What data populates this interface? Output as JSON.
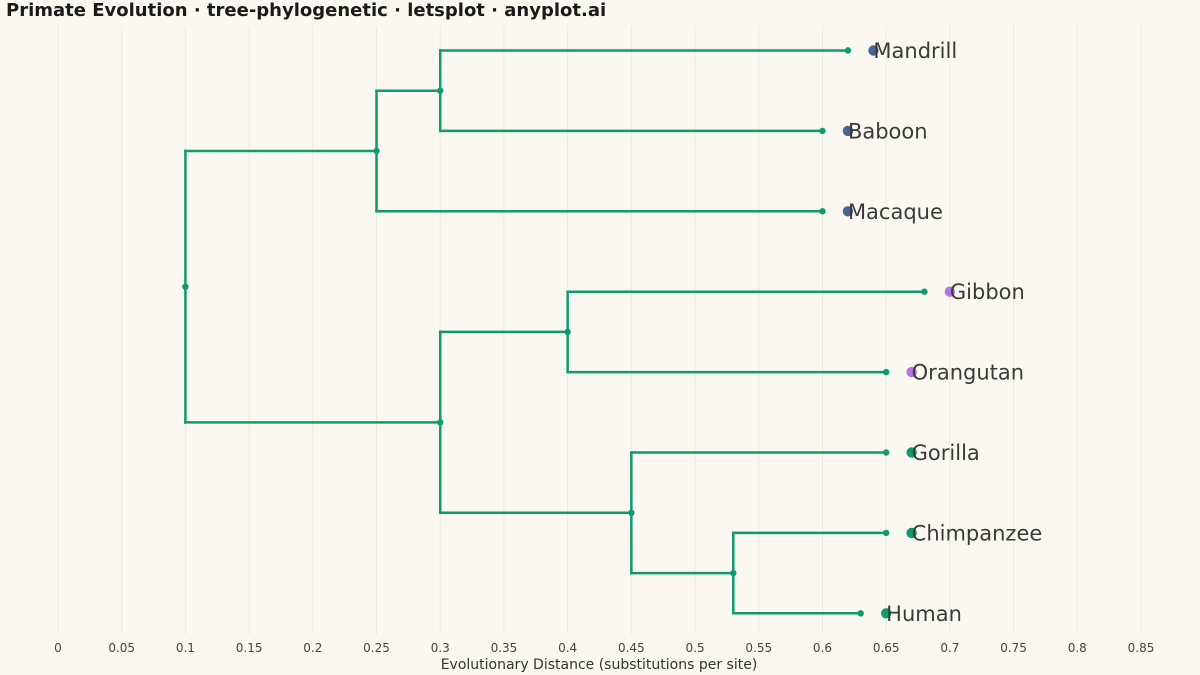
{
  "title": "Primate Evolution · tree-phylogenetic · letsplot · anyplot.ai",
  "chart_data": {
    "type": "tree-phylogenetic",
    "title": "Primate Evolution · tree-phylogenetic · letsplot · anyplot.ai",
    "xlabel": "Evolutionary Distance (substitutions per site)",
    "ylabel": "",
    "xlim": [
      0,
      0.85
    ],
    "x_ticks": [
      "0",
      "0.05",
      "0.1",
      "0.15",
      "0.2",
      "0.25",
      "0.3",
      "0.35",
      "0.4",
      "0.45",
      "0.5",
      "0.55",
      "0.6",
      "0.65",
      "0.7",
      "0.75",
      "0.8",
      "0.85"
    ],
    "grid": "vertical",
    "colors": {
      "branch": "#0E9A6E",
      "old_world_monkeys": "#4A6296",
      "lesser_great_apes": "#B275E8",
      "african_apes": "#0E9A6E"
    },
    "leaves": [
      {
        "name": "Mandrill",
        "x": 0.62,
        "order": 0,
        "color": "#4A6296"
      },
      {
        "name": "Baboon",
        "x": 0.6,
        "order": 1,
        "color": "#4A6296"
      },
      {
        "name": "Macaque",
        "x": 0.6,
        "order": 2,
        "color": "#4A6296"
      },
      {
        "name": "Gibbon",
        "x": 0.68,
        "order": 3,
        "color": "#B275E8"
      },
      {
        "name": "Orangutan",
        "x": 0.65,
        "order": 4,
        "color": "#B275E8"
      },
      {
        "name": "Gorilla",
        "x": 0.65,
        "order": 5,
        "color": "#0E9A6E"
      },
      {
        "name": "Chimpanzee",
        "x": 0.65,
        "order": 6,
        "color": "#0E9A6E"
      },
      {
        "name": "Human",
        "x": 0.63,
        "order": 7,
        "color": "#0E9A6E"
      }
    ],
    "internal_nodes": [
      {
        "id": "n_mandrill_baboon",
        "x": 0.3,
        "children": [
          "Mandrill",
          "Baboon"
        ]
      },
      {
        "id": "n_old_world",
        "x": 0.25,
        "children": [
          "n_mandrill_baboon",
          "Macaque"
        ]
      },
      {
        "id": "n_gibbon_orangutan",
        "x": 0.4,
        "children": [
          "Gibbon",
          "Orangutan"
        ]
      },
      {
        "id": "n_human_chimp",
        "x": 0.53,
        "children": [
          "Chimpanzee",
          "Human"
        ]
      },
      {
        "id": "n_african",
        "x": 0.45,
        "children": [
          "Gorilla",
          "n_human_chimp"
        ]
      },
      {
        "id": "n_apes",
        "x": 0.3,
        "children": [
          "n_gibbon_orangutan",
          "n_african"
        ]
      },
      {
        "id": "n_root",
        "x": 0.1,
        "children": [
          "n_old_world",
          "n_apes"
        ]
      }
    ],
    "root": "n_root"
  }
}
